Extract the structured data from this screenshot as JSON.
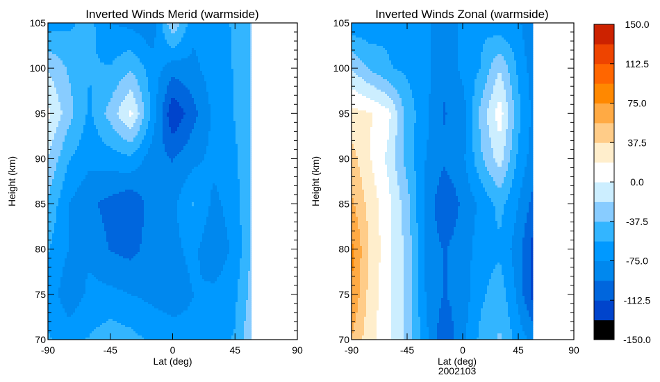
{
  "chart_data": [
    {
      "type": "heatmap",
      "subtype": "filled-contour",
      "title": "Inverted Winds Merid (warmside)",
      "xlabel": "Lat (deg)",
      "ylabel": "Height (km)",
      "xlim": [
        -90,
        90
      ],
      "ylim": [
        70,
        105
      ],
      "xticks": [
        "-90",
        "-45",
        "0",
        "45",
        "90"
      ],
      "yticks": [
        "70",
        "75",
        "80",
        "85",
        "90",
        "95",
        "100",
        "105"
      ],
      "data_extent_lat": [
        -90,
        57
      ],
      "lat": [
        -90,
        -75,
        -60,
        -45,
        -30,
        -15,
        0,
        15,
        30,
        45,
        57
      ],
      "height": [
        70,
        75,
        80,
        85,
        90,
        95,
        100,
        105
      ],
      "values": [
        [
          -55,
          -60,
          -55,
          -45,
          -50,
          -60,
          -65,
          -70,
          -60,
          -55,
          -20
        ],
        [
          -60,
          -90,
          -70,
          -70,
          -75,
          -80,
          -85,
          -75,
          -70,
          -60,
          -30
        ],
        [
          -55,
          -75,
          -80,
          -95,
          -100,
          -85,
          -80,
          -70,
          -90,
          -70,
          -35
        ],
        [
          -40,
          -75,
          -90,
          -100,
          -110,
          -85,
          -80,
          -55,
          -80,
          -65,
          -35
        ],
        [
          -20,
          -55,
          -70,
          -65,
          -60,
          -85,
          -95,
          -80,
          -70,
          -60,
          -35
        ],
        [
          5,
          -30,
          -60,
          -30,
          5,
          -60,
          -130,
          -100,
          -70,
          -55,
          -35
        ],
        [
          -20,
          -40,
          -55,
          -55,
          -40,
          -65,
          -85,
          -80,
          -65,
          -55,
          -35
        ],
        [
          -65,
          -60,
          -50,
          -75,
          -80,
          -90,
          -20,
          -70,
          -60,
          -55,
          -35
        ]
      ]
    },
    {
      "type": "heatmap",
      "subtype": "filled-contour",
      "title": "Inverted Winds Zonal (warmside)",
      "xlabel": "Lat (deg)",
      "xlabel2": "2002103",
      "ylabel": "Height (km)",
      "xlim": [
        -90,
        90
      ],
      "ylim": [
        70,
        105
      ],
      "xticks": [
        "-90",
        "-45",
        "0",
        "45",
        "90"
      ],
      "yticks": [
        "70",
        "75",
        "80",
        "85",
        "90",
        "95",
        "100",
        "105"
      ],
      "data_extent_lat": [
        -90,
        57
      ],
      "lat": [
        -90,
        -75,
        -60,
        -45,
        -30,
        -15,
        0,
        15,
        30,
        45,
        57
      ],
      "height": [
        70,
        75,
        80,
        85,
        90,
        95,
        100,
        105
      ],
      "values": [
        [
          55,
          25,
          5,
          -25,
          -70,
          -110,
          -80,
          -50,
          -35,
          -65,
          -80
        ],
        [
          75,
          30,
          5,
          -25,
          -75,
          -95,
          -85,
          -60,
          -45,
          -80,
          -120
        ],
        [
          80,
          35,
          5,
          -25,
          -80,
          -95,
          -85,
          -65,
          -60,
          -85,
          -120
        ],
        [
          60,
          30,
          5,
          -30,
          -80,
          -110,
          -90,
          -70,
          -50,
          -75,
          -100
        ],
        [
          45,
          20,
          -5,
          -45,
          -75,
          -90,
          -80,
          -40,
          -10,
          -60,
          -85
        ],
        [
          25,
          20,
          5,
          -45,
          -70,
          -95,
          -85,
          -30,
          10,
          -50,
          -80
        ],
        [
          -20,
          -40,
          -55,
          -60,
          -70,
          -90,
          -70,
          -55,
          -20,
          -60,
          -85
        ],
        [
          -70,
          -70,
          -60,
          -65,
          -70,
          -90,
          -70,
          -60,
          -70,
          -70,
          -95
        ]
      ]
    }
  ],
  "colorbar": {
    "labels": [
      "150.0",
      "112.5",
      "75.0",
      "37.5",
      "0.0",
      "-37.5",
      "-75.0",
      "-112.5",
      "-150.0"
    ],
    "levels": [
      -150,
      -131.25,
      -112.5,
      -93.75,
      -75,
      -56.25,
      -37.5,
      -18.75,
      0,
      18.75,
      37.5,
      56.25,
      75,
      93.75,
      112.5,
      131.25,
      150
    ],
    "colors": [
      "#000000",
      "#0044cc",
      "#0066dd",
      "#0088ee",
      "#0099ff",
      "#33b5ff",
      "#88ccff",
      "#cceeff",
      "#ffffff",
      "#ffeecc",
      "#ffcc88",
      "#ffaa44",
      "#ff8800",
      "#ff6600",
      "#ee4400",
      "#cc2200"
    ]
  }
}
